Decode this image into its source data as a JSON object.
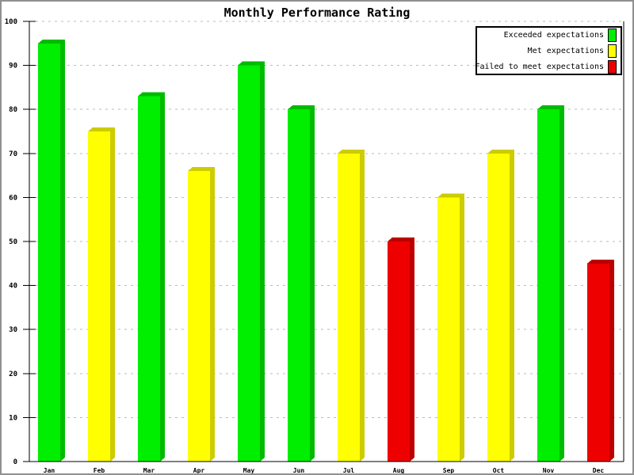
{
  "title": "Monthly Performance Rating",
  "chart_data": {
    "type": "bar",
    "title": "Monthly Performance Rating",
    "categories": [
      "Jan",
      "Feb",
      "Mar",
      "Apr",
      "May",
      "Jun",
      "Jul",
      "Aug",
      "Sep",
      "Oct",
      "Nov",
      "Dec"
    ],
    "values": [
      95,
      75,
      83,
      66,
      90,
      80,
      70,
      50,
      60,
      70,
      80,
      45
    ],
    "bar_categories": [
      "exceeded",
      "met",
      "exceeded",
      "met",
      "exceeded",
      "exceeded",
      "met",
      "failed",
      "met",
      "met",
      "exceeded",
      "failed"
    ],
    "xlabel": "",
    "ylabel": "",
    "ylim": [
      0,
      100
    ],
    "ytick_step": 10,
    "yticks": [
      0,
      10,
      20,
      30,
      40,
      50,
      60,
      70,
      80,
      90,
      100
    ],
    "grid": "horizontal-dashed",
    "grid_color": "#bbbbbb",
    "axis_color": "#000000",
    "bar_style": "3d",
    "legend_position": "top-right",
    "legend": [
      {
        "key": "exceeded",
        "label": "Exceeded expectations",
        "color": "#00ee00",
        "shade": "#00bb00"
      },
      {
        "key": "met",
        "label": "Met expectations",
        "color": "#ffff00",
        "shade": "#cccc00"
      },
      {
        "key": "failed",
        "label": "Failed to meet expectations",
        "color": "#ee0000",
        "shade": "#bb0000"
      }
    ]
  }
}
